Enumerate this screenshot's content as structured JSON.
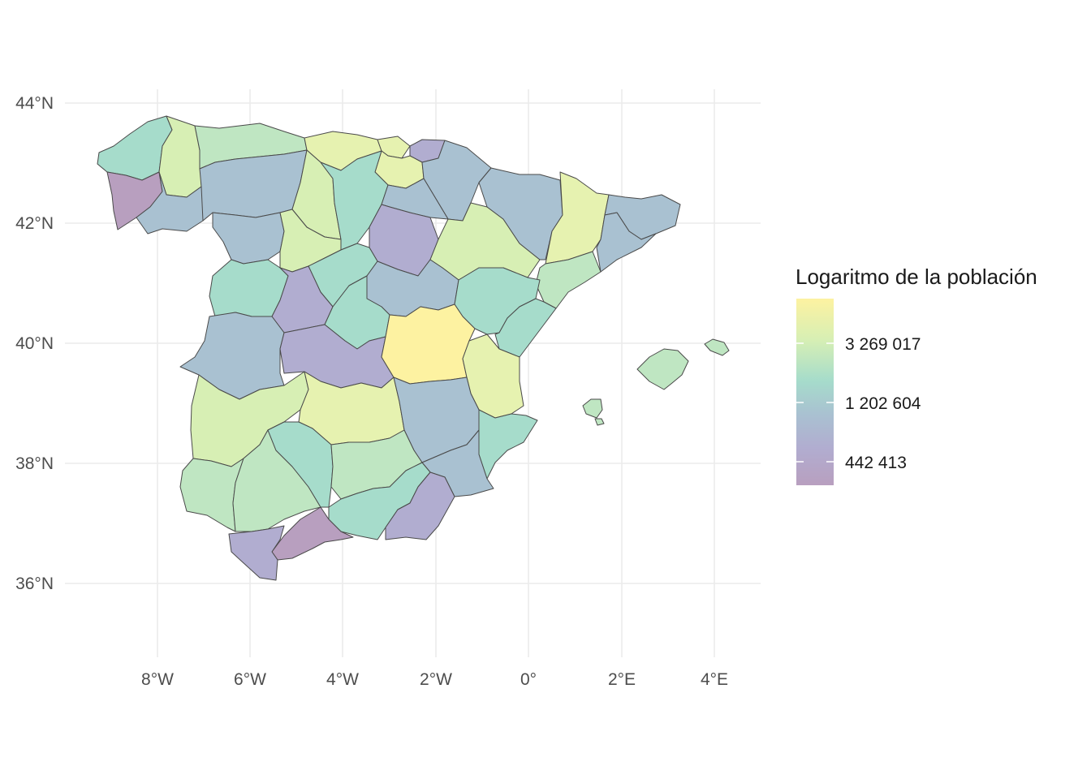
{
  "chart_data": {
    "type": "choropleth",
    "x_ticks": [
      "8°W",
      "6°W",
      "4°W",
      "2°W",
      "0°",
      "2°E",
      "4°E"
    ],
    "y_ticks": [
      "44°N",
      "42°N",
      "40°N",
      "38°N",
      "36°N"
    ],
    "legend": {
      "title": "Logaritmo de la población",
      "labels": [
        "3 269 017",
        "1 202 604",
        "442 413"
      ],
      "scale": "log",
      "colors": [
        "#fdf2a1",
        "#d7efb4",
        "#a6dccb",
        "#a9c1d1",
        "#b1add0",
        "#b89fbf"
      ]
    },
    "fill_colors": {
      "c1": "#b89fbf",
      "c2": "#b1add0",
      "c3": "#a9c1d1",
      "c4": "#a6dccb",
      "c5": "#bfe6c2",
      "c6": "#d7efb4",
      "c7": "#e6f2b0",
      "c8": "#fdf2a1"
    }
  }
}
